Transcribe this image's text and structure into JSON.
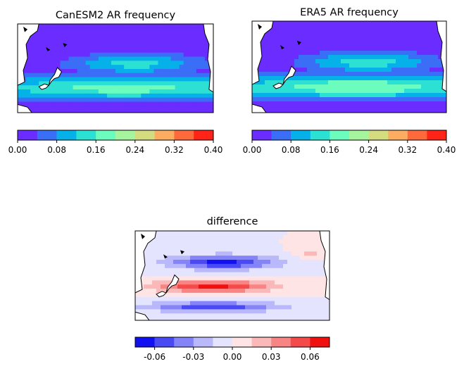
{
  "chart_data": [
    {
      "type": "heatmap",
      "title": "CanESM2 AR frequency",
      "field_kind": "frequency",
      "peak_value": 0.18,
      "colorbar": {
        "ticks": [
          "0.00",
          "0.08",
          "0.16",
          "0.24",
          "0.32",
          "0.40"
        ],
        "range": [
          0.0,
          0.4
        ],
        "levels": [
          0.0,
          0.04,
          0.08,
          0.12,
          0.16,
          0.2,
          0.24,
          0.28,
          0.32,
          0.36,
          0.4
        ],
        "colors": [
          "#6a2cff",
          "#3a6ef6",
          "#05b1e8",
          "#2ce0d4",
          "#6cfcbd",
          "#a6f49d",
          "#d4dc80",
          "#fdad61",
          "#ff6a3c",
          "#ff2318"
        ]
      }
    },
    {
      "type": "heatmap",
      "title": "ERA5 AR frequency",
      "field_kind": "frequency",
      "peak_value": 0.19,
      "colorbar": {
        "ticks": [
          "0.00",
          "0.08",
          "0.16",
          "0.24",
          "0.32",
          "0.40"
        ],
        "range": [
          0.0,
          0.4
        ],
        "levels": [
          0.0,
          0.04,
          0.08,
          0.12,
          0.16,
          0.2,
          0.24,
          0.28,
          0.32,
          0.36,
          0.4
        ],
        "colors": [
          "#6a2cff",
          "#3a6ef6",
          "#05b1e8",
          "#2ce0d4",
          "#6cfcbd",
          "#a6f49d",
          "#d4dc80",
          "#fdad61",
          "#ff6a3c",
          "#ff2318"
        ]
      }
    },
    {
      "type": "heatmap",
      "title": "difference",
      "field_kind": "difference",
      "colorbar": {
        "ticks": [
          "-0.06",
          "-0.03",
          "0.00",
          "0.03",
          "0.06"
        ],
        "range": [
          -0.075,
          0.075
        ],
        "levels": [
          -0.075,
          -0.06,
          -0.045,
          -0.03,
          -0.015,
          0.0,
          0.015,
          0.03,
          0.045,
          0.06,
          0.075
        ],
        "colors": [
          "#1010f0",
          "#4a4af5",
          "#8484f8",
          "#b8b8fb",
          "#e4e4fe",
          "#fee4e4",
          "#fbb8b8",
          "#f88484",
          "#f54a4a",
          "#f01010"
        ]
      }
    }
  ]
}
